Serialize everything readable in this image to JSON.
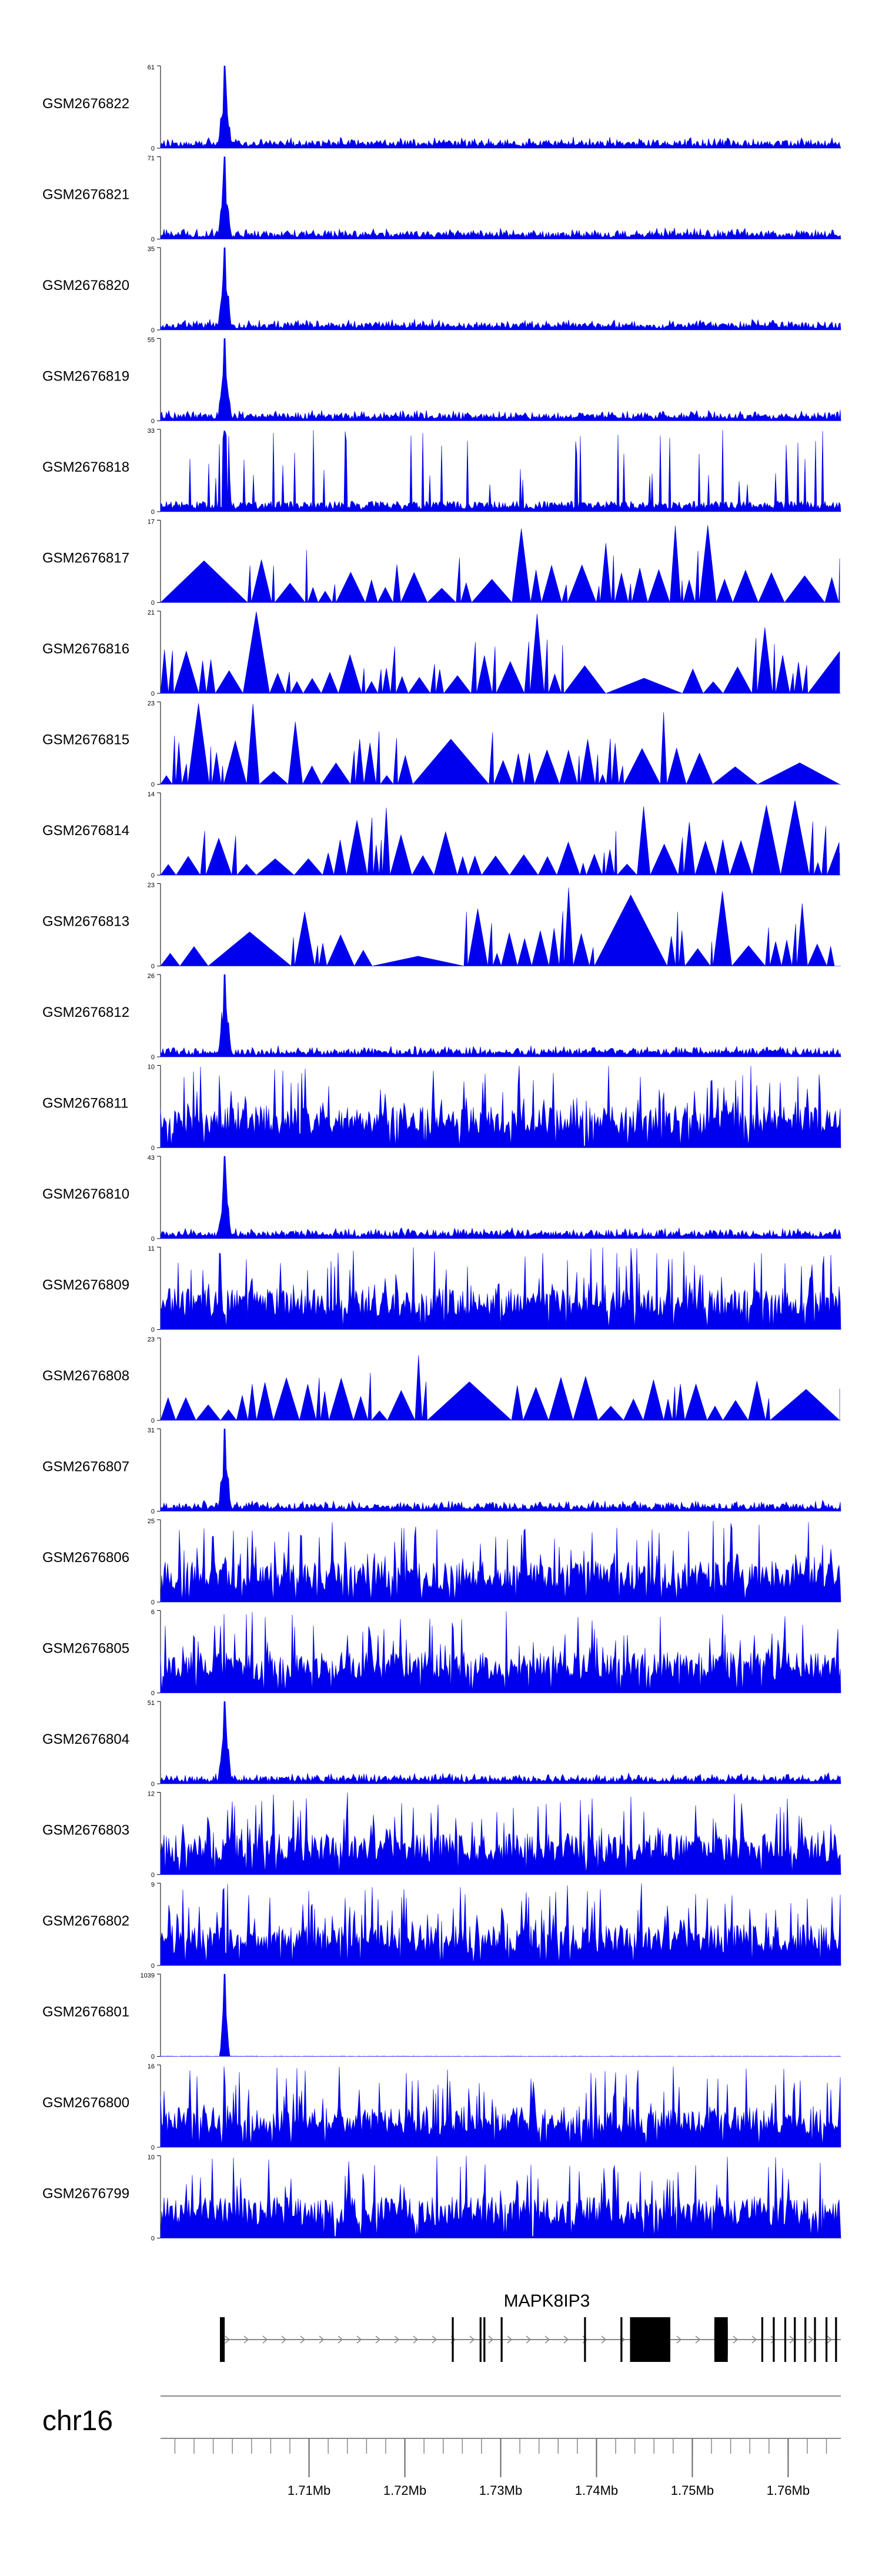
{
  "chart_data": {
    "type": "area",
    "title": "",
    "xlabel": "",
    "ylabel": "",
    "chromosome": "chr16",
    "x_range_mb": [
      1.6945,
      1.7655
    ],
    "x_unit": "Mb",
    "color": "#0000ee",
    "x_ticks": [
      {
        "value": 1.71,
        "label": "1.71Mb"
      },
      {
        "value": 1.72,
        "label": "1.72Mb"
      },
      {
        "value": 1.73,
        "label": "1.73Mb"
      },
      {
        "value": 1.74,
        "label": "1.74Mb"
      },
      {
        "value": 1.75,
        "label": "1.75Mb"
      },
      {
        "value": 1.76,
        "label": "1.76Mb"
      }
    ],
    "minor_tick_step_mb": 0.002,
    "gene": {
      "name": "MAPK8IP3",
      "start_mb": 1.7007,
      "end_mb": 1.7655,
      "strand": "+",
      "exons": [
        [
          1.7007,
          1.7012
        ],
        [
          1.7249,
          1.7251
        ],
        [
          1.7278,
          1.728
        ],
        [
          1.7282,
          1.7284
        ],
        [
          1.73,
          1.7302
        ],
        [
          1.7387,
          1.7389
        ],
        [
          1.7425,
          1.7427
        ],
        [
          1.7435,
          1.7477
        ],
        [
          1.7523,
          1.7537
        ],
        [
          1.7572,
          1.7574
        ],
        [
          1.7584,
          1.7586
        ],
        [
          1.7596,
          1.7598
        ],
        [
          1.7606,
          1.7608
        ],
        [
          1.7617,
          1.7619
        ],
        [
          1.7627,
          1.7629
        ],
        [
          1.7639,
          1.7641
        ],
        [
          1.7649,
          1.7651
        ]
      ],
      "thick_exons": [
        [
          1.7435,
          1.7477
        ],
        [
          1.7523,
          1.7537
        ]
      ]
    },
    "series": [
      {
        "name": "GSM2676822",
        "ymax": 61,
        "pattern": "peak",
        "seed": 22
      },
      {
        "name": "GSM2676821",
        "ymax": 71,
        "pattern": "peak",
        "seed": 21
      },
      {
        "name": "GSM2676820",
        "ymax": 35,
        "pattern": "peak",
        "seed": 20
      },
      {
        "name": "GSM2676819",
        "ymax": 55,
        "pattern": "peak",
        "seed": 19
      },
      {
        "name": "GSM2676818",
        "ymax": 33,
        "pattern": "spiky",
        "seed": 18
      },
      {
        "name": "GSM2676817",
        "ymax": 17,
        "pattern": "sparse",
        "seed": 17
      },
      {
        "name": "GSM2676816",
        "ymax": 21,
        "pattern": "sparse",
        "seed": 16
      },
      {
        "name": "GSM2676815",
        "ymax": 23,
        "pattern": "sparse",
        "seed": 15
      },
      {
        "name": "GSM2676814",
        "ymax": 14,
        "pattern": "sparse",
        "seed": 14
      },
      {
        "name": "GSM2676813",
        "ymax": 23,
        "pattern": "sparse",
        "seed": 13
      },
      {
        "name": "GSM2676812",
        "ymax": 26,
        "pattern": "peak",
        "seed": 12
      },
      {
        "name": "GSM2676811",
        "ymax": 10,
        "pattern": "dense",
        "seed": 11
      },
      {
        "name": "GSM2676810",
        "ymax": 43,
        "pattern": "peak",
        "seed": 10
      },
      {
        "name": "GSM2676809",
        "ymax": 11,
        "pattern": "dense",
        "seed": 9
      },
      {
        "name": "GSM2676808",
        "ymax": 23,
        "pattern": "sparse",
        "seed": 8
      },
      {
        "name": "GSM2676807",
        "ymax": 31,
        "pattern": "peak",
        "seed": 7
      },
      {
        "name": "GSM2676806",
        "ymax": 25,
        "pattern": "dense",
        "seed": 6
      },
      {
        "name": "GSM2676805",
        "ymax": 6,
        "pattern": "dense",
        "seed": 5
      },
      {
        "name": "GSM2676804",
        "ymax": 51,
        "pattern": "peak",
        "seed": 4
      },
      {
        "name": "GSM2676803",
        "ymax": 12,
        "pattern": "dense",
        "seed": 3
      },
      {
        "name": "GSM2676802",
        "ymax": 9,
        "pattern": "dense",
        "seed": 2
      },
      {
        "name": "GSM2676801",
        "ymax": 1039,
        "pattern": "spike",
        "seed": 1
      },
      {
        "name": "GSM2676800",
        "ymax": 16,
        "pattern": "dense",
        "seed": 100
      },
      {
        "name": "GSM2676799",
        "ymax": 10,
        "pattern": "dense",
        "seed": 99
      }
    ]
  }
}
